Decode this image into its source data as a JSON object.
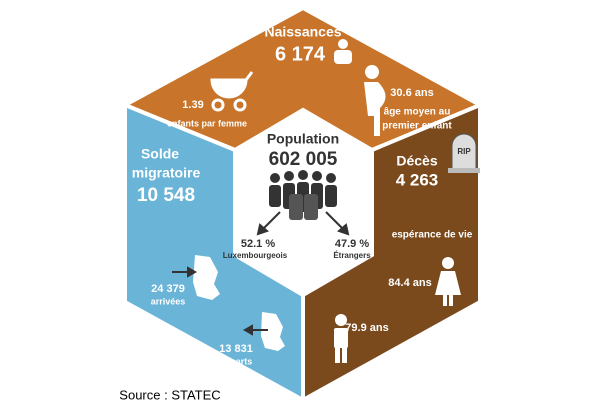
{
  "births": {
    "title": "Naissances",
    "value": "6 174",
    "fertility": "1.39",
    "fertility_label": "enfants par femme",
    "mother_age": "30.6 ans",
    "mother_age_label_1": "âge moyen au",
    "mother_age_label_2": "premier enfant"
  },
  "population": {
    "title": "Population",
    "value": "602 005",
    "share_lux": "52.1 %",
    "share_lux_label": "Luxembourgeois",
    "share_foreign": "47.9 %",
    "share_foreign_label": "Étrangers"
  },
  "migration": {
    "title_1": "Solde",
    "title_2": "migratoire",
    "value": "10 548",
    "arrivals": "24 379",
    "arrivals_label": "arrivées",
    "departures": "13 831",
    "departures_label": "départs"
  },
  "deaths": {
    "title": "Décès",
    "value": "4 263",
    "tomb": "RIP",
    "life_expectancy_label": "espérance de vie",
    "women": "84.4 ans",
    "men": "79.9 ans"
  },
  "source": "Source : STATEC"
}
